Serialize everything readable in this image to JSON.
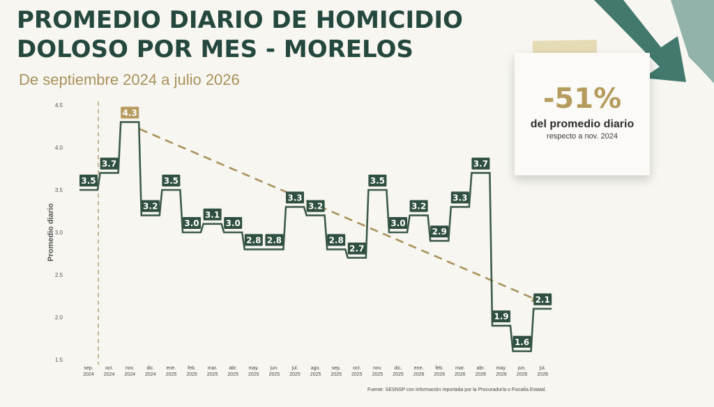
{
  "title_line1": "PROMEDIO DIARIO DE HOMICIDIO",
  "title_line2": "DOLOSO POR MES - MORELOS",
  "subtitle": "De septiembre 2024 a julio 2026",
  "card": {
    "pct": "-51%",
    "desc": "del promedio diario",
    "sub": "respecto a nov. 2024"
  },
  "source": "Fuente: SESNSP con información reportada por la Procuraduría o Fiscalía Estatal.",
  "colors": {
    "title": "#24483d",
    "accent": "#a9915b",
    "line": "#3d5a4a",
    "label_dark": "#2f4f40",
    "label_gold": "#b69b5f",
    "arrow": "#2f6b5e"
  },
  "chart_data": {
    "type": "line",
    "step": true,
    "categories": [
      [
        "sep.",
        "2024"
      ],
      [
        "oct.",
        "2024"
      ],
      [
        "nov.",
        "2024"
      ],
      [
        "dic.",
        "2024"
      ],
      [
        "ene.",
        "2025"
      ],
      [
        "feb.",
        "2025"
      ],
      [
        "mar.",
        "2025"
      ],
      [
        "abr.",
        "2025"
      ],
      [
        "may.",
        "2025"
      ],
      [
        "jun.",
        "2025"
      ],
      [
        "jul.",
        "2025"
      ],
      [
        "ago.",
        "2025"
      ],
      [
        "sep.",
        "2025"
      ],
      [
        "oct.",
        "2025"
      ],
      [
        "nov.",
        "2025"
      ],
      [
        "dic.",
        "2025"
      ],
      [
        "ene.",
        "2026"
      ],
      [
        "feb.",
        "2026"
      ],
      [
        "mar.",
        "2026"
      ],
      [
        "abr.",
        "2026"
      ],
      [
        "may.",
        "2026"
      ],
      [
        "jun.",
        "2026"
      ],
      [
        "jul.",
        "2026"
      ]
    ],
    "values": [
      3.5,
      3.7,
      4.3,
      3.2,
      3.5,
      3.0,
      3.1,
      3.0,
      2.8,
      2.8,
      3.3,
      3.2,
      2.8,
      2.7,
      3.5,
      3.0,
      3.2,
      2.9,
      3.3,
      3.7,
      1.9,
      1.6,
      2.1
    ],
    "labels": [
      "3.5",
      "3.7",
      "4.3",
      "3.2",
      "3.5",
      "3.0",
      "3.1",
      "3.0",
      "2.8",
      "2.8",
      "3.3",
      "3.2",
      "2.8",
      "2.7",
      "3.5",
      "3.0",
      "3.2",
      "2.9",
      "3.3",
      "3.7",
      "1.9",
      "1.6",
      "2.1"
    ],
    "highlight_index": 2,
    "ylabel": "Promedio diario",
    "ylim": [
      1.5,
      4.5
    ],
    "yticks": [
      "1.5",
      "2.0",
      "2.5",
      "3.0",
      "3.5",
      "4.0",
      "4.5"
    ],
    "trend": {
      "from_index": 2,
      "to_index": 22
    },
    "reference_line_index": 0
  }
}
